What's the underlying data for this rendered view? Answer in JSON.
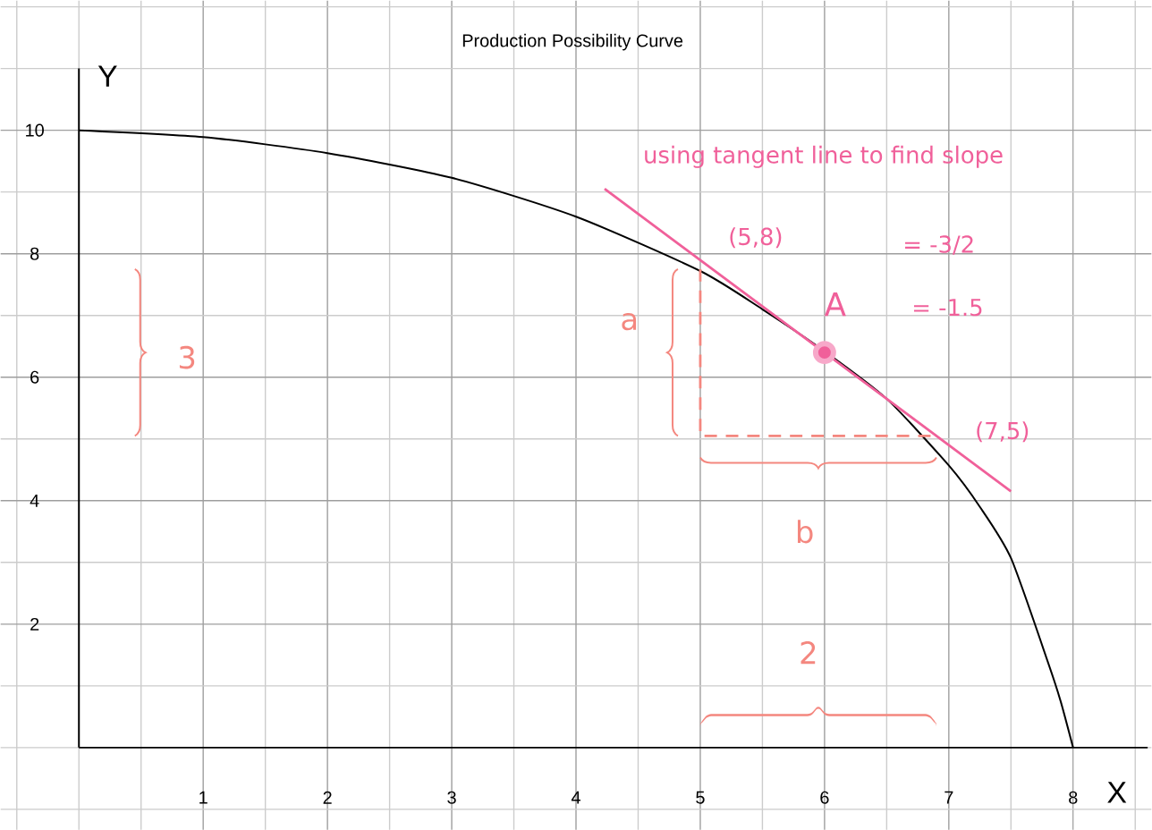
{
  "chart_data": {
    "type": "line",
    "title": "Production Possibility Curve",
    "xlabel": "X",
    "ylabel": "Y",
    "xlim": [
      -0.63,
      8.63
    ],
    "ylim": [
      -1.33,
      12.1
    ],
    "xticks": [
      {
        "value": -0.5,
        "label": null
      },
      {
        "value": 0,
        "label": null
      },
      {
        "value": 0.5,
        "label": null
      },
      1,
      {
        "value": 1.5,
        "label": null
      },
      2,
      {
        "value": 2.5,
        "label": null
      },
      3,
      {
        "value": 3.5,
        "label": null
      },
      4,
      {
        "value": 4.5,
        "label": null
      },
      5,
      {
        "value": 5.5,
        "label": null
      },
      6,
      {
        "value": 6.5,
        "label": null
      },
      7,
      {
        "value": 7.5,
        "label": null
      },
      8,
      {
        "value": 8.5,
        "label": null
      }
    ],
    "yticks": [
      {
        "value": -1,
        "label": null
      },
      {
        "value": 0,
        "label": null
      },
      {
        "value": 1,
        "label": null
      },
      2,
      {
        "value": 3,
        "label": null
      },
      4,
      {
        "value": 5,
        "label": null
      },
      6,
      {
        "value": 7,
        "label": null
      },
      8,
      {
        "value": 9,
        "label": null
      },
      10,
      {
        "value": 11,
        "label": null
      },
      {
        "value": 12,
        "label": null
      }
    ],
    "grid": true,
    "series": [
      {
        "color": "#000000",
        "line_style": "solid",
        "x": [
          0,
          1,
          2,
          3,
          4,
          5,
          5.5,
          6,
          6.5,
          7,
          7.25,
          7.5,
          7.8,
          7.9,
          8
        ],
        "values": [
          10,
          9.89,
          9.63,
          9.23,
          8.6,
          7.72,
          7.1,
          6.42,
          5.65,
          4.57,
          3.9,
          3.07,
          1.37,
          0.75,
          0
        ]
      },
      {
        "color": "#f0609a",
        "line_style": "solid",
        "x": [
          4.23,
          7.5
        ],
        "values": [
          9.05,
          4.15
        ]
      },
      {
        "color": "#f4877f",
        "line_style": "dashed",
        "x": [
          5,
          5,
          6.9
        ],
        "values": [
          7.75,
          5.05,
          5.05
        ]
      },
      {
        "type": "scatter",
        "color": "#f0609a",
        "x": [
          6
        ],
        "values": [
          6.4
        ]
      }
    ],
    "annotations": [
      "using tangent line to find slope",
      {
        "text": "(5,8)",
        "x": 5,
        "y": 8
      },
      "= -3/2",
      {
        "text": "A",
        "x": 6,
        "y": 6.4
      },
      "= -1.5",
      "3",
      "a",
      {
        "text": "(7,5)",
        "x": 7,
        "y": 5
      },
      "b",
      "2"
    ]
  }
}
